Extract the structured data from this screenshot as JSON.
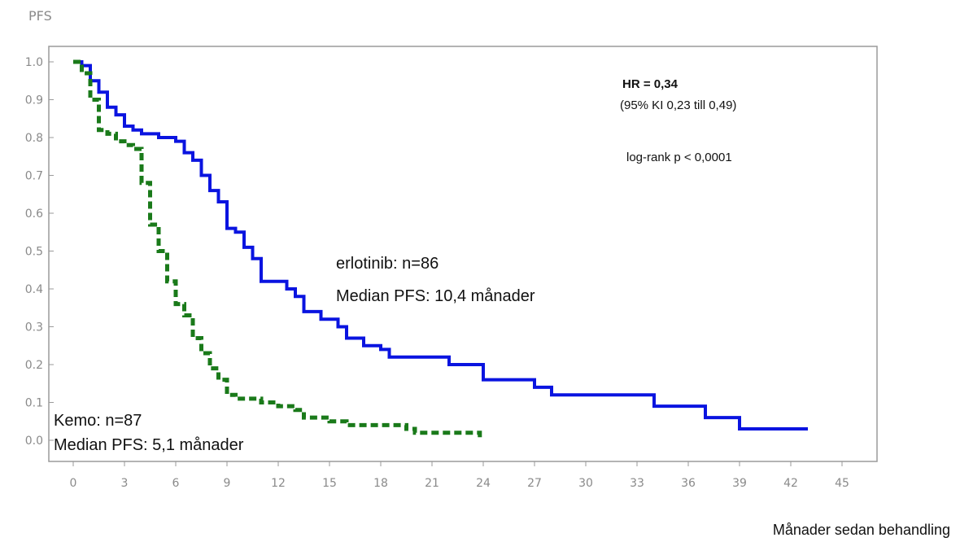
{
  "chart_data": {
    "type": "line",
    "title": "",
    "ylabel": "PFS",
    "xlabel": "Månader sedan behandling",
    "xlim": [
      0,
      45
    ],
    "ylim": [
      0.0,
      1.0
    ],
    "x_ticks": [
      0,
      3,
      6,
      9,
      12,
      15,
      18,
      21,
      24,
      27,
      30,
      33,
      36,
      39,
      42,
      45
    ],
    "y_ticks": [
      "0.0",
      "0.1",
      "0.2",
      "0.3",
      "0.4",
      "0.5",
      "0.6",
      "0.7",
      "0.8",
      "0.9",
      "1.0"
    ],
    "grid": false,
    "series": [
      {
        "color": "#0a14e0",
        "style": "solid",
        "points": [
          [
            0,
            1.0
          ],
          [
            0.5,
            0.99
          ],
          [
            1.0,
            0.95
          ],
          [
            1.5,
            0.92
          ],
          [
            2.0,
            0.88
          ],
          [
            2.5,
            0.86
          ],
          [
            3.0,
            0.83
          ],
          [
            3.5,
            0.82
          ],
          [
            4.0,
            0.81
          ],
          [
            4.5,
            0.81
          ],
          [
            5.0,
            0.8
          ],
          [
            5.5,
            0.8
          ],
          [
            6.0,
            0.79
          ],
          [
            6.5,
            0.76
          ],
          [
            7.0,
            0.74
          ],
          [
            7.5,
            0.7
          ],
          [
            8.0,
            0.66
          ],
          [
            8.5,
            0.63
          ],
          [
            9.0,
            0.56
          ],
          [
            9.5,
            0.55
          ],
          [
            10.0,
            0.51
          ],
          [
            10.5,
            0.48
          ],
          [
            11.0,
            0.42
          ],
          [
            11.5,
            0.42
          ],
          [
            12.0,
            0.42
          ],
          [
            12.5,
            0.4
          ],
          [
            13.0,
            0.38
          ],
          [
            13.5,
            0.34
          ],
          [
            14.0,
            0.34
          ],
          [
            14.5,
            0.32
          ],
          [
            15.0,
            0.32
          ],
          [
            15.5,
            0.3
          ],
          [
            16.0,
            0.27
          ],
          [
            17.0,
            0.25
          ],
          [
            18.0,
            0.24
          ],
          [
            18.5,
            0.22
          ],
          [
            19.5,
            0.22
          ],
          [
            21.0,
            0.22
          ],
          [
            22.0,
            0.2
          ],
          [
            23.5,
            0.2
          ],
          [
            24.0,
            0.16
          ],
          [
            26.0,
            0.16
          ],
          [
            27.0,
            0.14
          ],
          [
            28.0,
            0.12
          ],
          [
            30.0,
            0.12
          ],
          [
            32.0,
            0.12
          ],
          [
            34.0,
            0.09
          ],
          [
            37.0,
            0.06
          ],
          [
            39.0,
            0.03
          ],
          [
            43.0,
            0.03
          ]
        ]
      },
      {
        "color": "#1a7a1a",
        "style": "dashed",
        "points": [
          [
            0,
            1.0
          ],
          [
            0.5,
            0.97
          ],
          [
            1.0,
            0.9
          ],
          [
            1.5,
            0.82
          ],
          [
            2.0,
            0.81
          ],
          [
            2.5,
            0.79
          ],
          [
            3.0,
            0.78
          ],
          [
            3.5,
            0.77
          ],
          [
            4.0,
            0.68
          ],
          [
            4.5,
            0.57
          ],
          [
            5.0,
            0.5
          ],
          [
            5.5,
            0.42
          ],
          [
            6.0,
            0.36
          ],
          [
            6.5,
            0.33
          ],
          [
            7.0,
            0.27
          ],
          [
            7.5,
            0.23
          ],
          [
            8.0,
            0.19
          ],
          [
            8.5,
            0.16
          ],
          [
            9.0,
            0.12
          ],
          [
            9.5,
            0.11
          ],
          [
            10.0,
            0.11
          ],
          [
            11.0,
            0.1
          ],
          [
            12.0,
            0.09
          ],
          [
            13.0,
            0.08
          ],
          [
            13.5,
            0.06
          ],
          [
            14.0,
            0.06
          ],
          [
            15.0,
            0.05
          ],
          [
            16.0,
            0.04
          ],
          [
            18.0,
            0.04
          ],
          [
            19.0,
            0.04
          ],
          [
            19.5,
            0.03
          ],
          [
            20.0,
            0.02
          ],
          [
            22.0,
            0.02
          ],
          [
            23.5,
            0.02
          ],
          [
            23.8,
            0.0
          ]
        ]
      }
    ],
    "annotations": {
      "hr_label": "HR = 0,34",
      "hr_ci": "(95% KI 0,23 till 0,49)",
      "logrank": "log-rank p < 0,0001",
      "erlotinib_n": "erlotinib: n=86",
      "erlotinib_median": "Median PFS: 10,4 månader",
      "kemo_n": "Kemo: n=87",
      "kemo_median": "Median PFS: 5,1 månader"
    }
  }
}
